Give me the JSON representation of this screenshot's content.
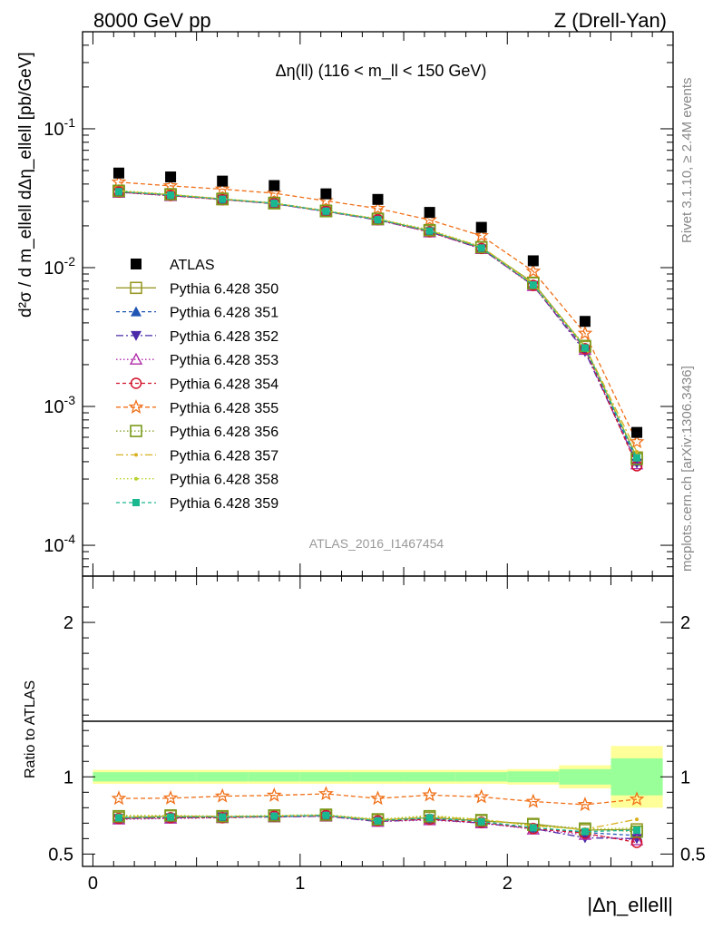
{
  "header": {
    "left": "8000 GeV pp",
    "right": "Z (Drell-Yan)"
  },
  "side_labels": {
    "rivet": "Rivet 3.1.10, ≥ 2.4M events",
    "mcplots": "mcplots.cern.ch [arXiv:1306.3436]"
  },
  "chart_data": {
    "type": "scatter",
    "title": "Δη(ll) (116 < m_ll < 150 GeV)",
    "watermark": "ATLAS_2016_I1467454",
    "xlabel": "|Δη_ellell|",
    "ylabel": "d²σ / d m_ellell dΔη_ellell [pb/GeV]",
    "ratio_ylabel": "Ratio to ATLAS",
    "xlim": [
      -0.05,
      2.8
    ],
    "ylim": [
      6e-05,
      0.5
    ],
    "yscale": "log",
    "ratio_ylim": [
      0.42,
      2.3
    ],
    "x_ticks": [
      "0",
      "1",
      "2"
    ],
    "y_ticks": [
      "10^-4",
      "10^-3",
      "10^-2",
      "10^-1"
    ],
    "ratio_ticks": [
      "0.5",
      "1",
      "2"
    ],
    "legend_placement": "middle-left",
    "x": [
      0.125,
      0.375,
      0.625,
      0.875,
      1.125,
      1.375,
      1.625,
      1.875,
      2.125,
      2.375,
      2.625
    ],
    "data": {
      "name": "ATLAS",
      "values": [
        0.048,
        0.045,
        0.042,
        0.039,
        0.034,
        0.031,
        0.025,
        0.0195,
        0.0112,
        0.0041,
        0.00065
      ],
      "band_inner": [
        0.03,
        0.03,
        0.03,
        0.03,
        0.03,
        0.03,
        0.03,
        0.03,
        0.035,
        0.05,
        0.12
      ],
      "band_outer": [
        0.045,
        0.045,
        0.045,
        0.045,
        0.045,
        0.045,
        0.045,
        0.045,
        0.05,
        0.075,
        0.2
      ]
    },
    "series": [
      {
        "name": "Pythia 6.428 350",
        "color": "#9a9a2a",
        "marker": "square-open",
        "dash": "",
        "ratio": [
          0.735,
          0.745,
          0.74,
          0.745,
          0.75,
          0.72,
          0.735,
          0.715,
          0.695,
          0.655,
          0.66
        ]
      },
      {
        "name": "Pythia 6.428 351",
        "color": "#1f55b4",
        "marker": "triangle-up",
        "dash": "4,3",
        "ratio": [
          0.73,
          0.735,
          0.74,
          0.74,
          0.75,
          0.715,
          0.73,
          0.71,
          0.67,
          0.64,
          0.62
        ]
      },
      {
        "name": "Pythia 6.428 352",
        "color": "#4a2aa8",
        "marker": "triangle-down",
        "dash": "8,3,2,3",
        "ratio": [
          0.73,
          0.735,
          0.74,
          0.74,
          0.745,
          0.71,
          0.725,
          0.7,
          0.665,
          0.605,
          0.6
        ]
      },
      {
        "name": "Pythia 6.428 353",
        "color": "#b02aa8",
        "marker": "triangle-open",
        "dash": "1.5,2.5",
        "ratio": [
          0.725,
          0.73,
          0.735,
          0.74,
          0.745,
          0.71,
          0.72,
          0.7,
          0.66,
          0.625,
          0.59
        ]
      },
      {
        "name": "Pythia 6.428 354",
        "color": "#d2142a",
        "marker": "circle-open",
        "dash": "4,3",
        "ratio": [
          0.73,
          0.735,
          0.735,
          0.745,
          0.75,
          0.715,
          0.725,
          0.705,
          0.665,
          0.635,
          0.575
        ]
      },
      {
        "name": "Pythia 6.428 355",
        "color": "#f07018",
        "marker": "star-open",
        "dash": "5,3",
        "ratio": [
          0.86,
          0.862,
          0.875,
          0.88,
          0.89,
          0.86,
          0.882,
          0.87,
          0.84,
          0.82,
          0.855
        ]
      },
      {
        "name": "Pythia 6.428 356",
        "color": "#7a9a1a",
        "marker": "square-open",
        "dash": "1.5,2.5",
        "ratio": [
          0.745,
          0.75,
          0.745,
          0.75,
          0.755,
          0.725,
          0.745,
          0.72,
          0.69,
          0.665,
          0.645
        ]
      },
      {
        "name": "Pythia 6.428 357",
        "color": "#d8b020",
        "marker": "dot",
        "dash": "8,3,2,3",
        "ratio": [
          0.74,
          0.745,
          0.745,
          0.745,
          0.75,
          0.72,
          0.74,
          0.725,
          0.685,
          0.66,
          0.725
        ]
      },
      {
        "name": "Pythia 6.428 358",
        "color": "#b8d22a",
        "marker": "dot",
        "dash": "1.5,2.5",
        "ratio": [
          0.75,
          0.75,
          0.745,
          0.75,
          0.755,
          0.725,
          0.75,
          0.725,
          0.68,
          0.66,
          0.67
        ]
      },
      {
        "name": "Pythia 6.428 359",
        "color": "#1ab890",
        "marker": "square",
        "dash": "4,3",
        "ratio": [
          0.735,
          0.74,
          0.74,
          0.745,
          0.75,
          0.715,
          0.735,
          0.71,
          0.67,
          0.645,
          0.655
        ]
      }
    ]
  }
}
